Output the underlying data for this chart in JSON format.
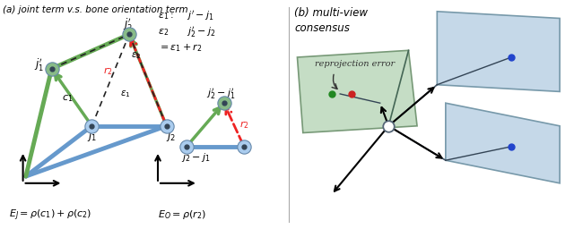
{
  "title_a": "(a) joint term v.s. bone orientation term",
  "title_b": "(b) multi-view\nconsensus",
  "bg_color": "#ffffff",
  "blue_node_color": "#aaccee",
  "green_node_color": "#88bb88",
  "blue_line_color": "#6699cc",
  "green_line_color": "#66aa55",
  "red_dashed_color": "#ee2222",
  "black_dashed_color": "#222222",
  "camera_fill_blue": "#c5d8e8",
  "camera_fill_green": "#c5ddc5",
  "camera_edge_blue": "#7799aa",
  "camera_edge_green": "#779977",
  "separator_color": "#aaaaaa"
}
